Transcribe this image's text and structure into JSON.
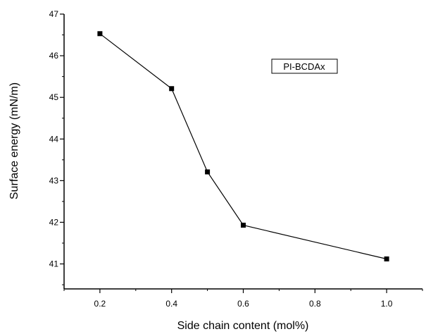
{
  "chart_data": {
    "type": "line",
    "title": "",
    "xlabel": "Side chain content (mol%)",
    "ylabel": "Surface energy (mN/m)",
    "xlim": [
      0.1,
      1.1
    ],
    "ylim": [
      40.4,
      47
    ],
    "x_ticks": [
      0.2,
      0.4,
      0.6,
      0.8,
      1.0
    ],
    "x_tick_labels": [
      "0.2",
      "0.4",
      "0.6",
      "0.8",
      "1.0"
    ],
    "y_ticks": [
      41,
      42,
      43,
      44,
      45,
      46,
      47
    ],
    "y_tick_labels": [
      "41",
      "42",
      "43",
      "44",
      "45",
      "46",
      "47"
    ],
    "grid": false,
    "series": [
      {
        "marker": "square",
        "color": "#000000",
        "x": [
          0.2,
          0.4,
          0.5,
          0.6,
          1.0
        ],
        "y": [
          46.53,
          45.21,
          43.21,
          41.93,
          41.12
        ]
      }
    ],
    "annotations": [
      {
        "text": "PI-BCDAx"
      }
    ]
  }
}
